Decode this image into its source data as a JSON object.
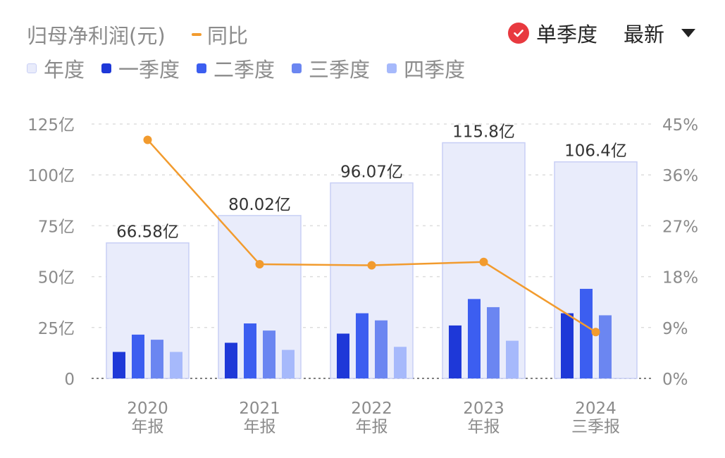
{
  "header": {
    "metric_title": "归母净利润(元)",
    "yoy_label": "同比",
    "single_quarter_label": "单季度",
    "latest_label": "最新"
  },
  "legend": [
    {
      "label": "年度",
      "color": "#e9ecfb"
    },
    {
      "label": "一季度",
      "color": "#1e38d8"
    },
    {
      "label": "二季度",
      "color": "#3c5ef0"
    },
    {
      "label": "三季度",
      "color": "#6b86f1"
    },
    {
      "label": "四季度",
      "color": "#a6b9fb"
    }
  ],
  "colors": {
    "annual_fill": "#e9ecfb",
    "annual_stroke": "#c8cff5",
    "q1": "#1e38d8",
    "q2": "#3c5ef0",
    "q3": "#6b86f1",
    "q4": "#a6b9fb",
    "yoy_line": "#f29b2e",
    "check": "#e8393f"
  },
  "chart_data": {
    "type": "bar",
    "categories": [
      [
        "2020",
        "年报"
      ],
      [
        "2021",
        "年报"
      ],
      [
        "2022",
        "年报"
      ],
      [
        "2023",
        "年报"
      ],
      [
        "2024",
        "三季报"
      ]
    ],
    "annual": [
      66.58,
      80.02,
      96.07,
      115.8,
      106.4
    ],
    "annual_labels": [
      "66.58亿",
      "80.02亿",
      "96.07亿",
      "115.8亿",
      "106.4亿"
    ],
    "series": [
      {
        "name": "一季度",
        "values": [
          13,
          17.5,
          22,
          26,
          32
        ]
      },
      {
        "name": "二季度",
        "values": [
          21.5,
          27,
          32,
          39,
          44
        ]
      },
      {
        "name": "三季度",
        "values": [
          19,
          23.5,
          28.5,
          35,
          31
        ]
      },
      {
        "name": "四季度",
        "values": [
          13,
          14,
          15.5,
          18.5,
          null
        ]
      }
    ],
    "yoy": {
      "name": "同比",
      "values": [
        42.2,
        20.2,
        20.0,
        20.6,
        8.2
      ]
    },
    "y_left": {
      "min": 0,
      "max": 125,
      "ticks": [
        "0",
        "25亿",
        "50亿",
        "75亿",
        "100亿",
        "125亿"
      ]
    },
    "y_right": {
      "min": 0,
      "max": 45,
      "ticks": [
        "0%",
        "9%",
        "18%",
        "27%",
        "36%",
        "45%"
      ]
    },
    "grid": true
  }
}
